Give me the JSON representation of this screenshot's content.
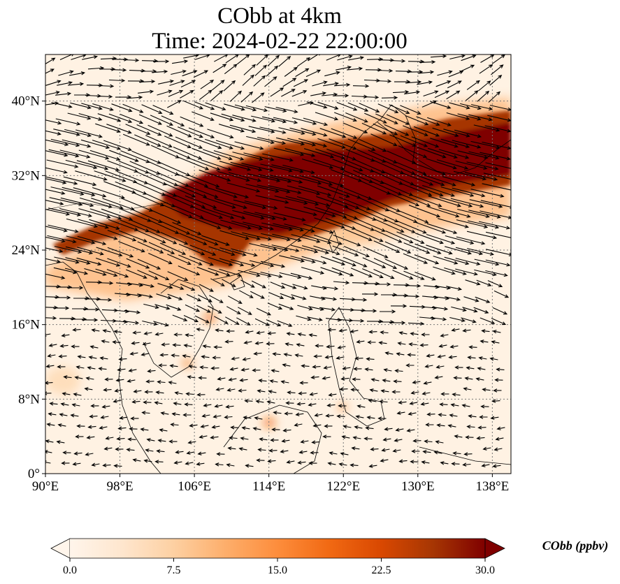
{
  "title": {
    "line1": "CObb at 4km",
    "line2": "Time: 2024-02-22 22:00:00"
  },
  "map": {
    "lon_range": [
      90,
      140
    ],
    "lat_range": [
      0,
      45
    ],
    "lon_ticks": [
      {
        "value": 90,
        "label": "90°E"
      },
      {
        "value": 98,
        "label": "98°E"
      },
      {
        "value": 106,
        "label": "106°E"
      },
      {
        "value": 114,
        "label": "114°E"
      },
      {
        "value": 122,
        "label": "122°E"
      },
      {
        "value": 130,
        "label": "130°E"
      },
      {
        "value": 138,
        "label": "138°E"
      }
    ],
    "lat_ticks": [
      {
        "value": 0,
        "label": "0°"
      },
      {
        "value": 8,
        "label": "8°N"
      },
      {
        "value": 16,
        "label": "16°N"
      },
      {
        "value": 24,
        "label": "24°N"
      },
      {
        "value": 32,
        "label": "32°N"
      },
      {
        "value": 40,
        "label": "40°N"
      }
    ],
    "gridlines": true
  },
  "colorbar": {
    "label": "CObb (ppbv)",
    "min": 0.0,
    "max": 30.0,
    "ticks": [
      "0.0",
      "7.5",
      "15.0",
      "22.5",
      "30.0"
    ],
    "colors": [
      "#fff5eb",
      "#fee6ce",
      "#fdd0a2",
      "#fdae6b",
      "#fd8d3c",
      "#f16913",
      "#d94801",
      "#a63603",
      "#7f0000"
    ],
    "extend": "both"
  }
}
